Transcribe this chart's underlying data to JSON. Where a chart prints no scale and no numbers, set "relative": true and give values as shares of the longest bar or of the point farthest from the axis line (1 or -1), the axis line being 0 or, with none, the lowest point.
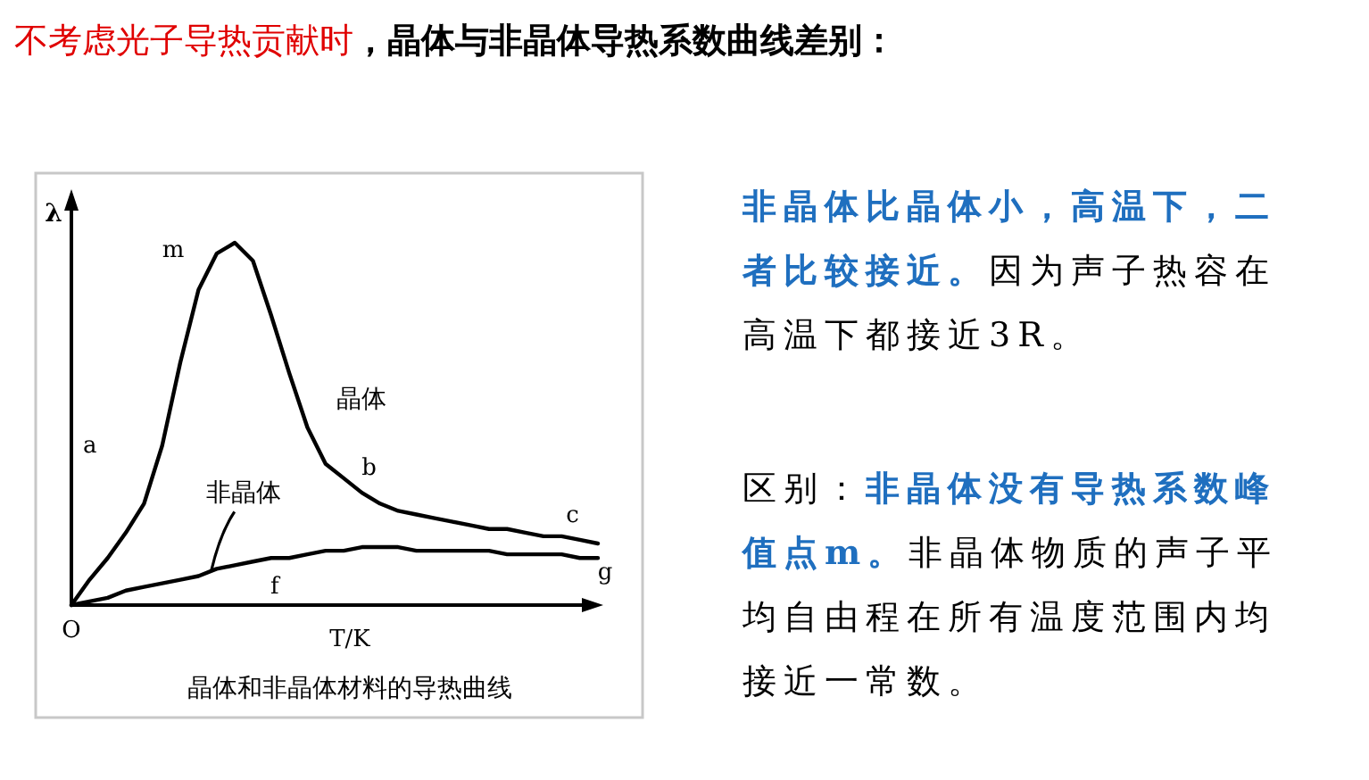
{
  "chart_data": {
    "type": "line",
    "relative": true,
    "title": "不考虑光子导热贡献时",
    "subtitle": "，晶体与非晶体导热系数曲线差别：",
    "xlabel": "T/K",
    "ylabel": "λ",
    "categories": [
      null,
      null,
      null,
      null,
      null,
      null,
      null,
      null,
      null,
      null,
      null,
      null,
      null,
      null,
      null,
      null,
      null,
      null,
      null,
      null,
      null,
      null,
      null,
      null,
      null,
      null,
      null,
      null,
      null,
      null
    ],
    "series": [
      {
        "name": "晶体",
        "color": "#000000",
        "values": [
          0,
          0.07,
          0.13,
          0.2,
          0.28,
          0.44,
          0.67,
          0.87,
          0.97,
          1,
          0.95,
          0.8,
          0.64,
          0.49,
          0.39,
          0.35,
          0.31,
          0.28,
          0.26,
          0.25,
          0.24,
          0.23,
          0.22,
          0.21,
          0.21,
          0.2,
          0.19,
          0.19,
          0.18,
          0.17
        ]
      },
      {
        "name": "非晶体",
        "color": "#000000",
        "values": [
          0,
          0.01,
          0.02,
          0.04,
          0.05,
          0.06,
          0.07,
          0.08,
          0.1,
          0.11,
          0.12,
          0.13,
          0.13,
          0.14,
          0.15,
          0.15,
          0.16,
          0.16,
          0.16,
          0.15,
          0.15,
          0.15,
          0.15,
          0.15,
          0.14,
          0.14,
          0.14,
          0.14,
          0.13,
          0.13
        ]
      }
    ],
    "annotations": [
      "m",
      "a",
      "b",
      "c",
      "f",
      "g",
      "O",
      "晶体和非晶体材料的导热曲线",
      "**非晶体比晶体小，高温下，二者比较接近。**因为声子热容在高温下都接近3R。",
      "区别：**非晶体没有导热系数峰值点m。**非晶体物质的声子平均自由程在所有温度范围内均接近一常数。"
    ],
    "legend": false
  }
}
